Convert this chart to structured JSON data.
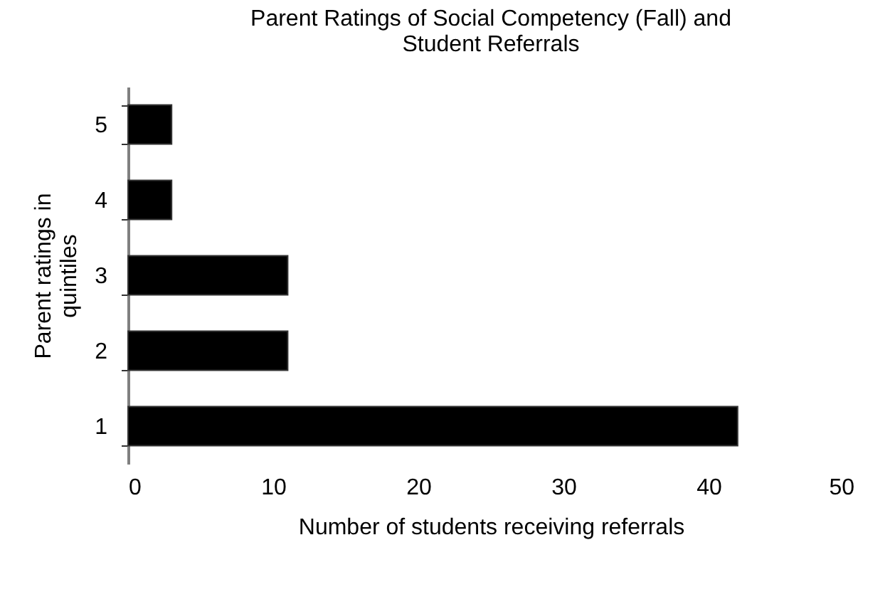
{
  "chart_data": {
    "type": "bar",
    "orientation": "horizontal",
    "title": "Parent Ratings of Social Competency (Fall) and Student Referrals",
    "xlabel": "Number of students receiving referrals",
    "ylabel": "Parent ratings in quintiles",
    "categories": [
      "5",
      "4",
      "3",
      "2",
      "1"
    ],
    "values": [
      3,
      3,
      11,
      11,
      42
    ],
    "color": "#000000",
    "xlim": [
      0,
      50
    ],
    "xticks": [
      0,
      10,
      20,
      30,
      40,
      50
    ],
    "grid": false
  }
}
